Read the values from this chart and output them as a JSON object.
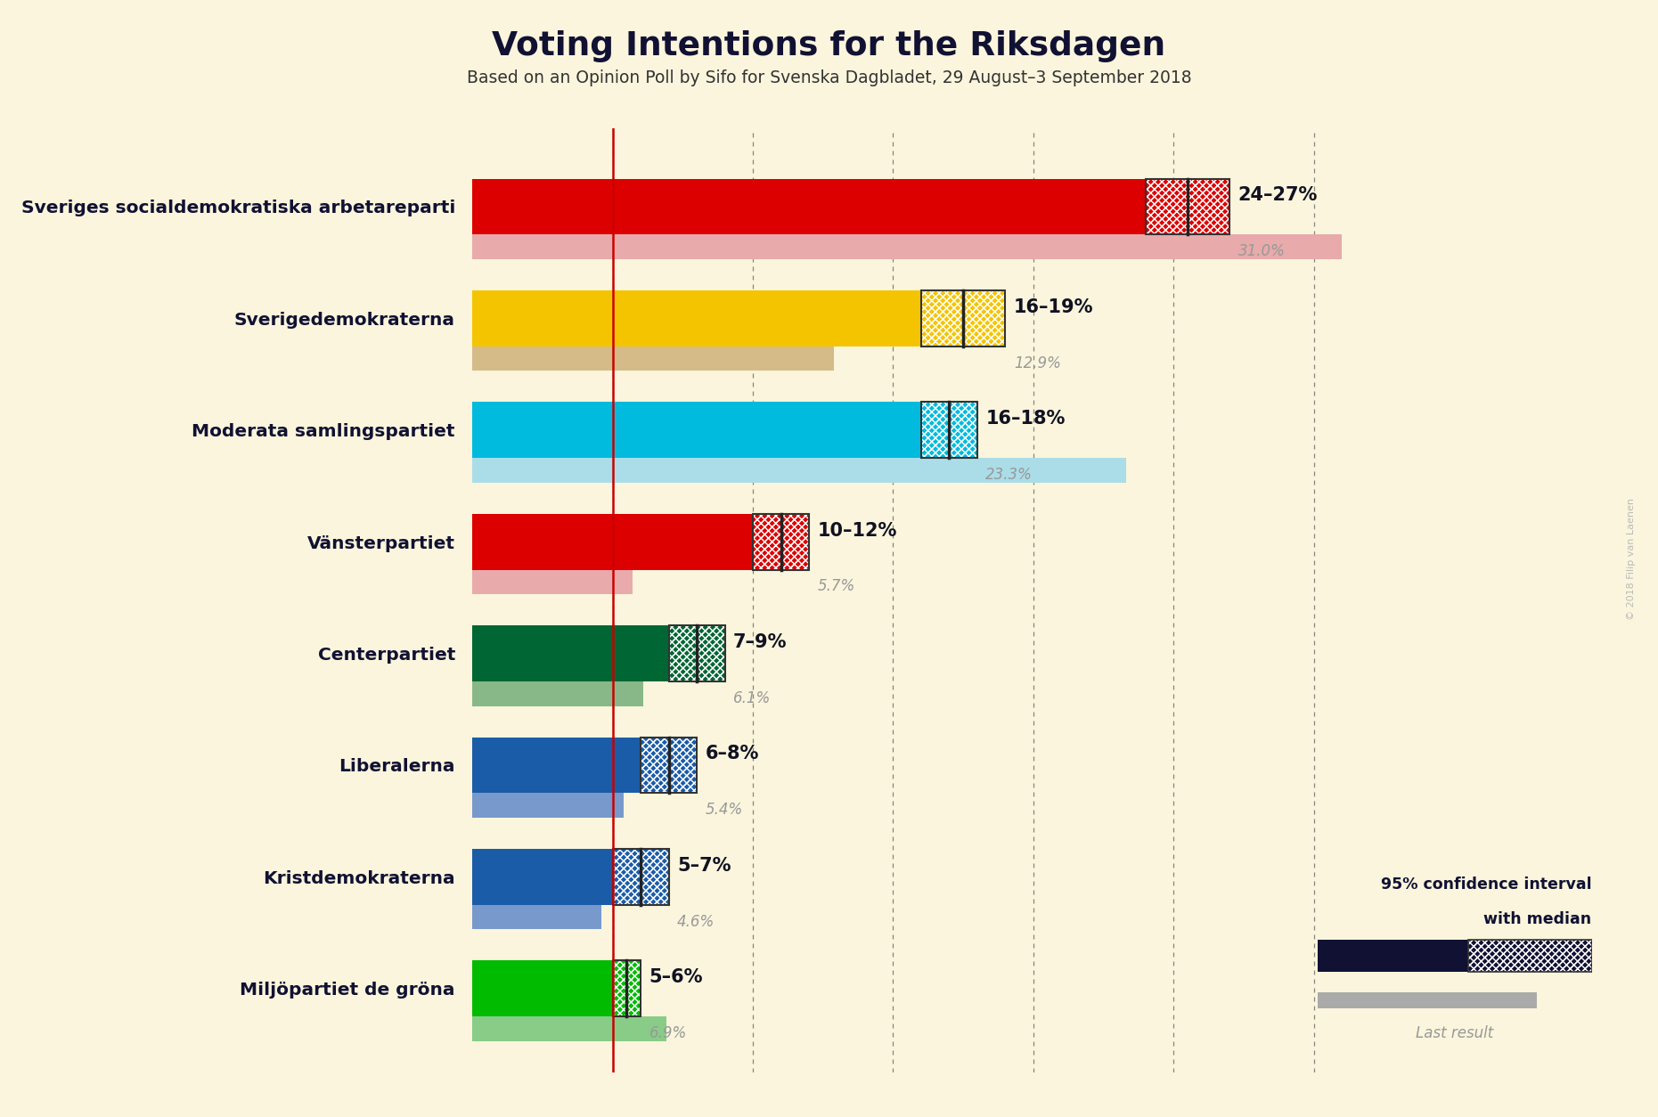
{
  "title": "Voting Intentions for the Riksdagen",
  "subtitle": "Based on an Opinion Poll by Sifo for Svenska Dagbladet, 29 August–3 September 2018",
  "copyright": "© 2018 Filip van Laenen",
  "background_color": "#FAF5DC",
  "parties": [
    "Sveriges socialdemokratiska arbetareparti",
    "Sverigedemokraterna",
    "Moderata samlingspartiet",
    "Vänsterpartiet",
    "Centerpartiet",
    "Liberalerna",
    "Kristdemokraterna",
    "Miljöpartiet de gröna"
  ],
  "ci_low": [
    24,
    16,
    16,
    10,
    7,
    6,
    5,
    5
  ],
  "ci_high": [
    27,
    19,
    18,
    12,
    9,
    8,
    7,
    6
  ],
  "median": [
    25.5,
    17.5,
    17.0,
    11.0,
    8.0,
    7.0,
    6.0,
    5.5
  ],
  "last_result": [
    31.0,
    12.9,
    23.3,
    5.7,
    6.1,
    5.4,
    4.6,
    6.9
  ],
  "solid_colors": [
    "#DD0000",
    "#F5C400",
    "#00BBDD",
    "#DD0000",
    "#006633",
    "#1A5CA8",
    "#1A5CA8",
    "#00BB00"
  ],
  "last_colors": [
    "#E8AAAA",
    "#D4BB88",
    "#AADDE8",
    "#E8AAAA",
    "#88B888",
    "#7799CC",
    "#7799CC",
    "#88CC88"
  ],
  "ci_labels": [
    "24–27%",
    "16–19%",
    "16–18%",
    "10–12%",
    "7–9%",
    "6–8%",
    "5–7%",
    "5–6%"
  ],
  "last_labels": [
    "31.0%",
    "12.9%",
    "23.3%",
    "5.7%",
    "6.1%",
    "5.4%",
    "4.6%",
    "6.9%"
  ],
  "red_line_x": 5.0,
  "grid_x": [
    5,
    10,
    15,
    20,
    25,
    30
  ],
  "xmax": 34,
  "legend_text1": "95% confidence interval",
  "legend_text2": "with median",
  "legend_last": "Last result"
}
